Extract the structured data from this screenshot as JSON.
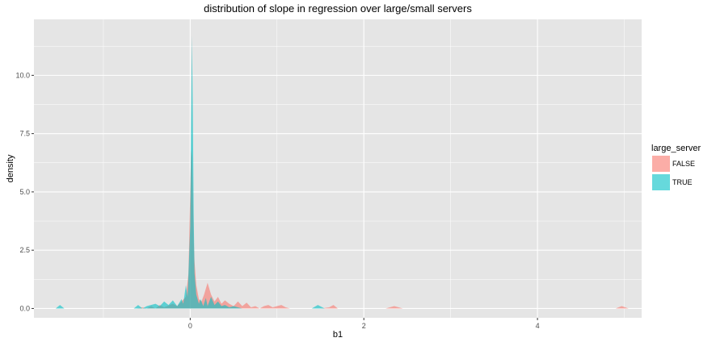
{
  "chart_data": {
    "type": "area",
    "title": "distribution of slope in regression over large/small servers",
    "xlabel": "b1",
    "ylabel": "density",
    "xlim": [
      -1.8,
      5.2
    ],
    "ylim": [
      -0.4,
      12.4
    ],
    "x_ticks": [
      0,
      2,
      4
    ],
    "x_tick_labels": [
      "0",
      "2",
      "4"
    ],
    "y_ticks": [
      0,
      2.5,
      5,
      7.5,
      10
    ],
    "y_tick_labels": [
      "0.0",
      "2.5",
      "5.0",
      "7.5",
      "10.0"
    ],
    "grid": true,
    "legend": {
      "title": "large_server",
      "position": "right"
    },
    "colors": {
      "FALSE": "#F8766D",
      "TRUE": "#00BFC4",
      "panel": "#E5E5E5",
      "grid": "#FFFFFF"
    },
    "series": [
      {
        "name": "FALSE",
        "x": [
          -0.75,
          -0.62,
          -0.55,
          -0.5,
          -0.45,
          -0.4,
          -0.35,
          -0.3,
          -0.2,
          -0.15,
          -0.1,
          -0.05,
          -0.02,
          0.0,
          0.01,
          0.02,
          0.03,
          0.04,
          0.05,
          0.07,
          0.1,
          0.13,
          0.16,
          0.2,
          0.24,
          0.28,
          0.32,
          0.36,
          0.4,
          0.45,
          0.5,
          0.55,
          0.6,
          0.65,
          0.7,
          0.75,
          0.8,
          0.85,
          0.9,
          0.95,
          1.0,
          1.05,
          1.1,
          1.15,
          1.5,
          1.6,
          1.65,
          1.7,
          2.25,
          2.35,
          2.45,
          4.9,
          4.97,
          5.05
        ],
        "y": [
          0,
          0,
          0.05,
          0,
          0.1,
          0,
          0.15,
          0.05,
          0.2,
          0.1,
          0.3,
          0.5,
          1.5,
          5.0,
          6.8,
          6.5,
          5.0,
          3.0,
          2.0,
          1.0,
          0.4,
          0.3,
          0.6,
          1.1,
          0.6,
          0.3,
          0.5,
          0.2,
          0.35,
          0.2,
          0.1,
          0.3,
          0.1,
          0.25,
          0.05,
          0.1,
          0,
          0.1,
          0.15,
          0.05,
          0.1,
          0.15,
          0.05,
          0,
          0,
          0.05,
          0.15,
          0,
          0,
          0.1,
          0,
          0,
          0.1,
          0
        ]
      },
      {
        "name": "TRUE",
        "x": [
          -1.55,
          -1.5,
          -1.45,
          -0.65,
          -0.6,
          -0.55,
          -0.5,
          -0.4,
          -0.35,
          -0.3,
          -0.25,
          -0.2,
          -0.15,
          -0.1,
          -0.08,
          -0.05,
          -0.03,
          0.0,
          0.01,
          0.02,
          0.03,
          0.04,
          0.05,
          0.07,
          0.1,
          0.12,
          0.15,
          0.18,
          0.2,
          0.24,
          0.28,
          0.32,
          0.36,
          0.4,
          0.45,
          0.5,
          0.55,
          0.6,
          1.4,
          1.47,
          1.55
        ],
        "y": [
          0,
          0.15,
          0,
          0,
          0.15,
          0,
          0.1,
          0.2,
          0.1,
          0.3,
          0.15,
          0.35,
          0.1,
          0.4,
          0.2,
          1.0,
          0.5,
          3.5,
          8.0,
          11.7,
          8.5,
          4.0,
          1.5,
          0.6,
          0.2,
          0.4,
          0.1,
          0.45,
          0.1,
          0.5,
          0.15,
          0.3,
          0.1,
          0.15,
          0.05,
          0.1,
          0.05,
          0,
          0,
          0.15,
          0
        ]
      }
    ]
  }
}
